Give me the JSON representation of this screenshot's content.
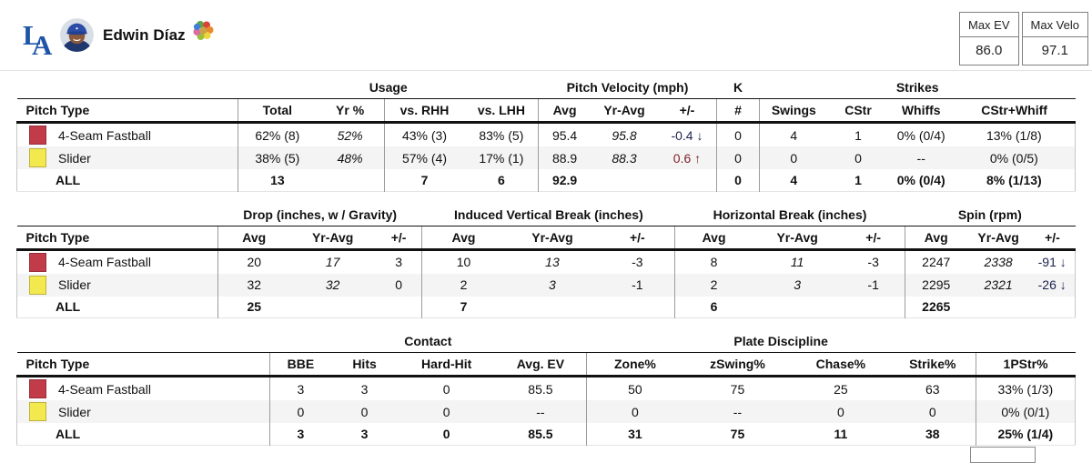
{
  "header": {
    "player_name": "Edwin Díaz",
    "max_ev": {
      "label": "Max EV",
      "value": "86.0"
    },
    "max_velo": {
      "label": "Max Velo",
      "value": "97.1"
    }
  },
  "colors": {
    "dodger_blue": "#1E55A8",
    "tone_down": "#1c2250",
    "tone_up": "#7d1f28",
    "row_alt": "#f4f4f4",
    "separator": "#9c9c9c"
  },
  "pitch_colors": {
    "fourseam": {
      "fill": "#C23B49",
      "border": "#962E3A"
    },
    "slider": {
      "fill": "#F2E94E",
      "border": "#BFB13E"
    }
  },
  "tables": [
    {
      "name": "usage-velocity-strikes",
      "groups": [
        {
          "label": "",
          "span": 1
        },
        {
          "label": "Usage",
          "span": 4
        },
        {
          "label": "Pitch Velocity (mph)",
          "span": 3
        },
        {
          "label": "K",
          "span": 1
        },
        {
          "label": "Strikes",
          "span": 4
        }
      ],
      "columns": [
        {
          "label": "Pitch Type",
          "width": 20.9,
          "sep": false
        },
        {
          "label": "Total",
          "width": 7.4,
          "sep": true
        },
        {
          "label": "Yr %",
          "width": 6.4,
          "sep": false
        },
        {
          "label": "vs. RHH",
          "width": 7.6,
          "sep": true
        },
        {
          "label": "vs. LHH",
          "width": 7.0,
          "sep": false
        },
        {
          "label": "Avg",
          "width": 4.9,
          "sep": true
        },
        {
          "label": "Yr-Avg",
          "width": 6.4,
          "sep": false
        },
        {
          "label": "+/-",
          "width": 5.5,
          "sep": false
        },
        {
          "label": "#",
          "width": 4.1,
          "sep": true
        },
        {
          "label": "Swings",
          "width": 6.4,
          "sep": true
        },
        {
          "label": "CStr",
          "width": 5.8,
          "sep": false
        },
        {
          "label": "Whiffs",
          "width": 6.1,
          "sep": false
        },
        {
          "label": "CStr+Whiff",
          "width": 11.5,
          "sep": false
        }
      ],
      "rows": [
        {
          "type": "pitch",
          "swatch": "fourseam",
          "cells": [
            "4-Seam Fastball",
            "62% (8)",
            {
              "text": "52%",
              "italic": true
            },
            "43% (3)",
            "83% (5)",
            "95.4",
            {
              "text": "95.8",
              "italic": true
            },
            {
              "text": "-0.4 ↓",
              "tone": "down"
            },
            "0",
            "4",
            "1",
            "0% (0/4)",
            "13% (1/8)"
          ]
        },
        {
          "type": "pitch",
          "swatch": "slider",
          "cells": [
            "Slider",
            "38% (5)",
            {
              "text": "48%",
              "italic": true
            },
            "57% (4)",
            "17% (1)",
            "88.9",
            {
              "text": "88.3",
              "italic": true
            },
            {
              "text": "0.6 ↑",
              "tone": "up"
            },
            "0",
            "0",
            "0",
            "--",
            "0% (0/5)"
          ]
        },
        {
          "type": "all",
          "cells": [
            "ALL",
            "13",
            "",
            "7",
            "6",
            "92.9",
            "",
            "",
            "0",
            "4",
            "1",
            "0% (0/4)",
            "8% (1/13)"
          ]
        }
      ]
    },
    {
      "name": "movement-spin",
      "groups": [
        {
          "label": "",
          "span": 1
        },
        {
          "label": "Drop (inches, w / Gravity)",
          "span": 3
        },
        {
          "label": "Induced Vertical Break (inches)",
          "span": 3
        },
        {
          "label": "Horizontal Break (inches)",
          "span": 3
        },
        {
          "label": "Spin (rpm)",
          "span": 3
        }
      ],
      "columns": [
        {
          "label": "Pitch Type",
          "width": 19.0,
          "sep": false
        },
        {
          "label": "Avg",
          "width": 6.8,
          "sep": true
        },
        {
          "label": "Yr-Avg",
          "width": 8.1,
          "sep": false
        },
        {
          "label": "+/-",
          "width": 4.4,
          "sep": false
        },
        {
          "label": "Avg",
          "width": 7.8,
          "sep": true
        },
        {
          "label": "Yr-Avg",
          "width": 9.0,
          "sep": false
        },
        {
          "label": "+/-",
          "width": 7.1,
          "sep": false
        },
        {
          "label": "Avg",
          "width": 7.3,
          "sep": true
        },
        {
          "label": "Yr-Avg",
          "width": 8.5,
          "sep": false
        },
        {
          "label": "+/-",
          "width": 5.9,
          "sep": false
        },
        {
          "label": "Avg",
          "width": 5.9,
          "sep": true
        },
        {
          "label": "Yr-Avg",
          "width": 5.9,
          "sep": false
        },
        {
          "label": "+/-",
          "width": 4.3,
          "sep": false
        }
      ],
      "rows": [
        {
          "type": "pitch",
          "swatch": "fourseam",
          "cells": [
            "4-Seam Fastball",
            "20",
            {
              "text": "17",
              "italic": true
            },
            "3",
            "10",
            {
              "text": "13",
              "italic": true
            },
            "-3",
            "8",
            {
              "text": "11",
              "italic": true
            },
            "-3",
            "2247",
            {
              "text": "2338",
              "italic": true
            },
            {
              "text": "-91 ↓",
              "tone": "down"
            }
          ]
        },
        {
          "type": "pitch",
          "swatch": "slider",
          "cells": [
            "Slider",
            "32",
            {
              "text": "32",
              "italic": true
            },
            "0",
            "2",
            {
              "text": "3",
              "italic": true
            },
            "-1",
            "2",
            {
              "text": "3",
              "italic": true
            },
            "-1",
            "2295",
            {
              "text": "2321",
              "italic": true
            },
            {
              "text": "-26 ↓",
              "tone": "down"
            }
          ]
        },
        {
          "type": "all",
          "cells": [
            "ALL",
            "25",
            "",
            "",
            "7",
            "",
            "",
            "6",
            "",
            "",
            "2265",
            "",
            ""
          ]
        }
      ]
    },
    {
      "name": "contact-plate-discipline",
      "groups": [
        {
          "label": "",
          "span": 1
        },
        {
          "label": "Contact",
          "span": 4
        },
        {
          "label": "Plate Discipline",
          "span": 4
        },
        {
          "label": "",
          "span": 1
        }
      ],
      "columns": [
        {
          "label": "Pitch Type",
          "width": 23.9,
          "sep": false
        },
        {
          "label": "BBE",
          "width": 5.8,
          "sep": true
        },
        {
          "label": "Hits",
          "width": 6.3,
          "sep": false
        },
        {
          "label": "Hard-Hit",
          "width": 9.2,
          "sep": false
        },
        {
          "label": "Avg. EV",
          "width": 8.6,
          "sep": false
        },
        {
          "label": "Zone%",
          "width": 9.2,
          "sep": true
        },
        {
          "label": "zSwing%",
          "width": 10.2,
          "sep": false
        },
        {
          "label": "Chase%",
          "width": 9.3,
          "sep": false
        },
        {
          "label": "Strike%",
          "width": 8.1,
          "sep": false
        },
        {
          "label": "1PStr%",
          "width": 9.4,
          "sep": true
        }
      ],
      "rows": [
        {
          "type": "pitch",
          "swatch": "fourseam",
          "cells": [
            "4-Seam Fastball",
            "3",
            "3",
            "0",
            "85.5",
            "50",
            "75",
            "25",
            "63",
            "33% (1/3)"
          ]
        },
        {
          "type": "pitch",
          "swatch": "slider",
          "cells": [
            "Slider",
            "0",
            "0",
            "0",
            "--",
            "0",
            "--",
            "0",
            "0",
            "0% (0/1)"
          ]
        },
        {
          "type": "all",
          "cells": [
            "ALL",
            "3",
            "3",
            "0",
            "85.5",
            "31",
            "75",
            "11",
            "38",
            "25% (1/4)"
          ]
        }
      ]
    }
  ]
}
